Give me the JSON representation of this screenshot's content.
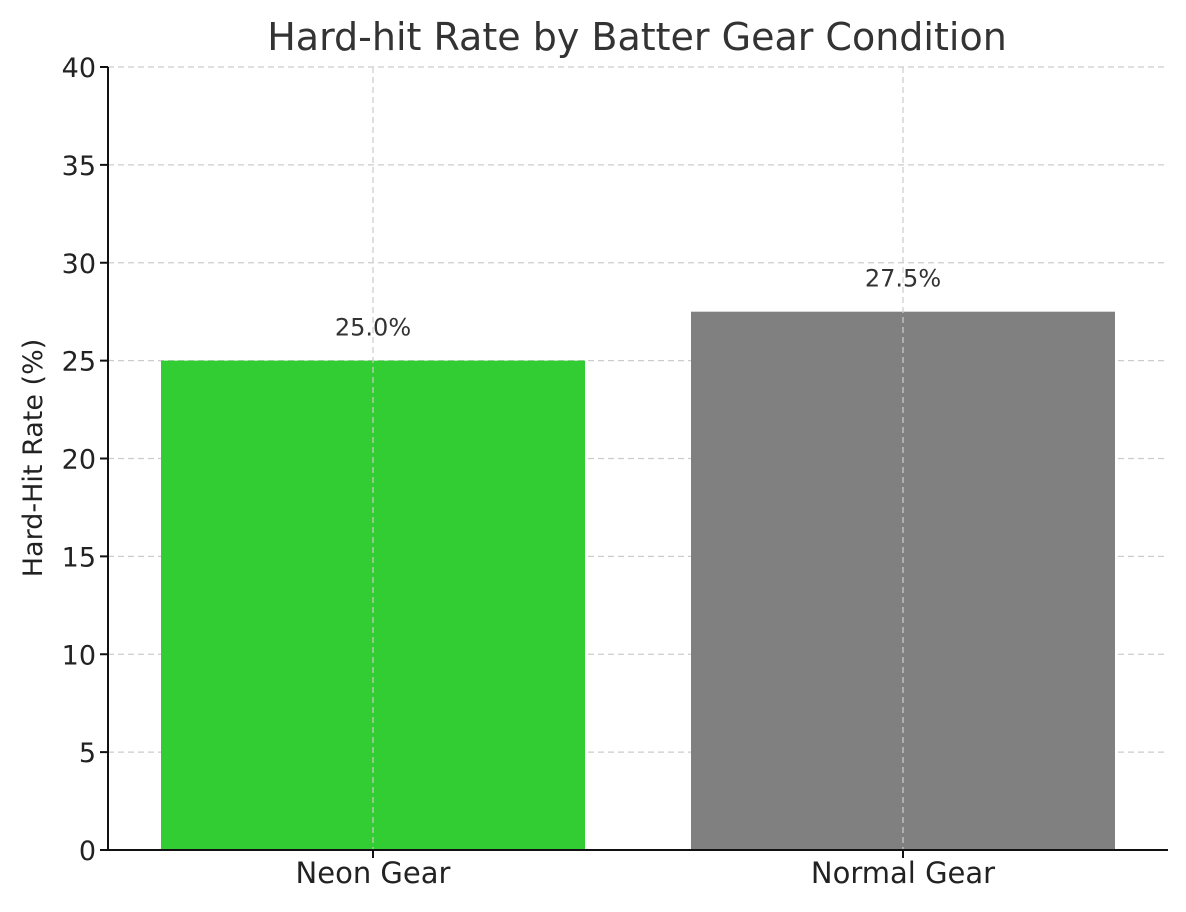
{
  "chart_data": {
    "type": "bar",
    "title": "Hard-hit Rate by Batter Gear Condition",
    "xlabel": "",
    "ylabel": "Hard-Hit Rate (%)",
    "ylim": [
      0,
      40
    ],
    "yticks": [
      0,
      5,
      10,
      15,
      20,
      25,
      30,
      35,
      40
    ],
    "categories": [
      "Neon Gear",
      "Normal Gear"
    ],
    "values": [
      25.0,
      27.5
    ],
    "data_labels": [
      "25.0%",
      "27.5%"
    ],
    "colors": [
      "#32cd32",
      "#808080"
    ],
    "grid": true
  }
}
